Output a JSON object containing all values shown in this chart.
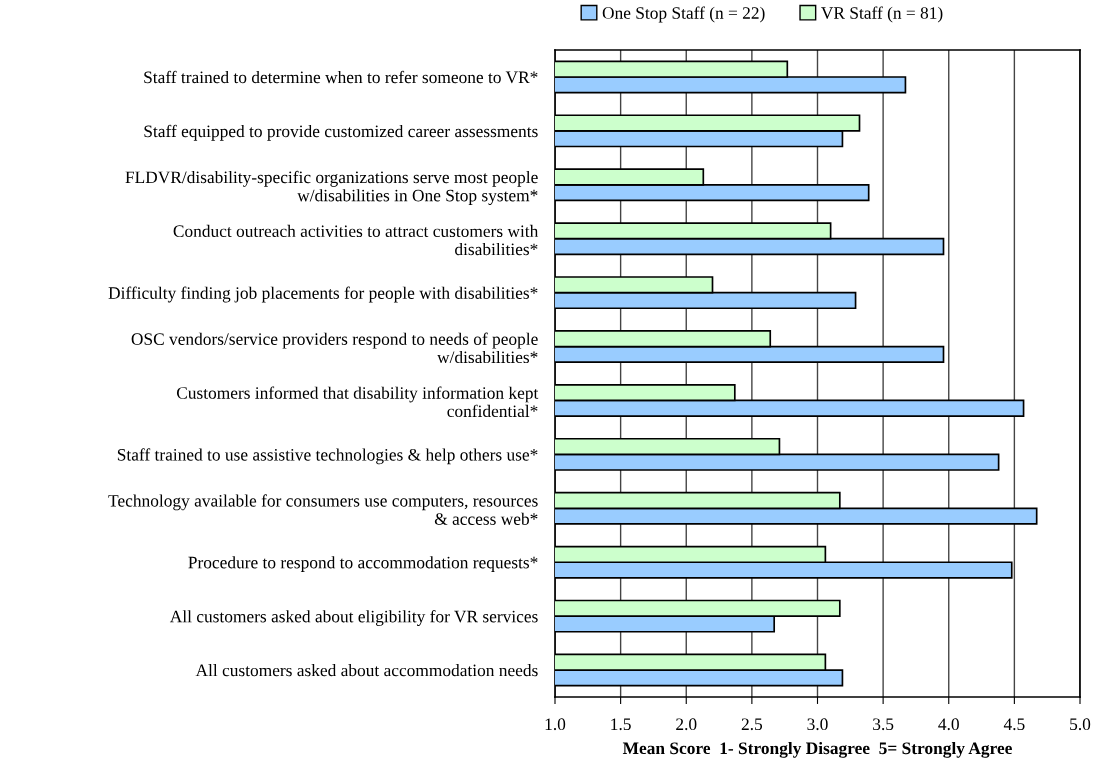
{
  "chart_data": {
    "type": "bar",
    "orientation": "horizontal",
    "xlabel": "Mean Score  1- Strongly Disagree  5= Strongly Agree",
    "categories": [
      "Staff trained to determine when to refer someone to VR*",
      "Staff equipped to provide customized career assessments",
      "FLDVR/disability-specific organizations serve most people\nw/disabilities in One Stop system*",
      "Conduct outreach activities to attract customers with\ndisabilities*",
      "Difficulty finding job placements for people with disabilities*",
      "OSC vendors/service providers respond to needs of people\nw/disabilities*",
      "Customers informed that disability information kept\nconfidential*",
      "Staff trained to use assistive technologies & help others use*",
      "Technology available for consumers use computers, resources\n& access web*",
      "Procedure to respond to accommodation requests*",
      "All customers asked about eligibility for VR services",
      "All customers asked about accommodation needs"
    ],
    "series": [
      {
        "name": "One Stop Staff (n = 22)",
        "color": "#99ccff",
        "values": [
          3.67,
          3.19,
          3.39,
          3.96,
          3.29,
          3.96,
          4.57,
          4.38,
          4.67,
          4.48,
          2.67,
          3.19
        ]
      },
      {
        "name": "VR Staff (n = 81)",
        "color": "#ccffcc",
        "values": [
          2.77,
          3.32,
          2.13,
          3.1,
          2.2,
          2.64,
          2.37,
          2.71,
          3.17,
          3.06,
          3.17,
          3.06
        ]
      }
    ],
    "xlim": [
      1.0,
      5.0
    ],
    "xticks": [
      {
        "value": 1.0,
        "label": "1.0"
      },
      {
        "value": 1.5,
        "label": "1.5"
      },
      {
        "value": 2.0,
        "label": "2.0"
      },
      {
        "value": 2.5,
        "label": "2.5"
      },
      {
        "value": 3.0,
        "label": "3.0"
      },
      {
        "value": 3.5,
        "label": "3.5"
      },
      {
        "value": 4.0,
        "label": "4.0"
      },
      {
        "value": 4.5,
        "label": "4.5"
      },
      {
        "value": 5.0,
        "label": "5.0"
      }
    ],
    "grid": "x",
    "legend": "top"
  }
}
